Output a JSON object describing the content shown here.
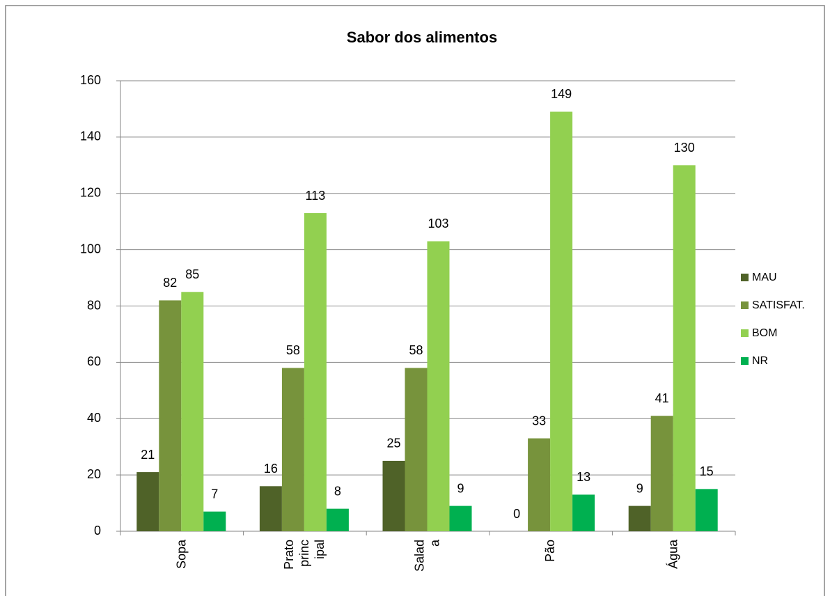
{
  "chart_data": {
    "type": "bar",
    "title": "Sabor dos alimentos",
    "categories": [
      "Sopa",
      "Prato principal",
      "Salada",
      "Pão",
      "Água"
    ],
    "series": [
      {
        "name": "MAU",
        "color": "#4f6228",
        "values": [
          21,
          16,
          25,
          0,
          9
        ]
      },
      {
        "name": "SATISFAT.",
        "color": "#77933c",
        "values": [
          82,
          58,
          58,
          33,
          41
        ]
      },
      {
        "name": "BOM",
        "color": "#92d050",
        "values": [
          85,
          113,
          103,
          149,
          130
        ]
      },
      {
        "name": "NR",
        "color": "#00b050",
        "values": [
          7,
          8,
          9,
          13,
          15
        ]
      }
    ],
    "ylim": [
      0,
      160
    ],
    "yticks": [
      0,
      20,
      40,
      60,
      80,
      100,
      120,
      140,
      160
    ],
    "grid": true,
    "legend": "right"
  }
}
